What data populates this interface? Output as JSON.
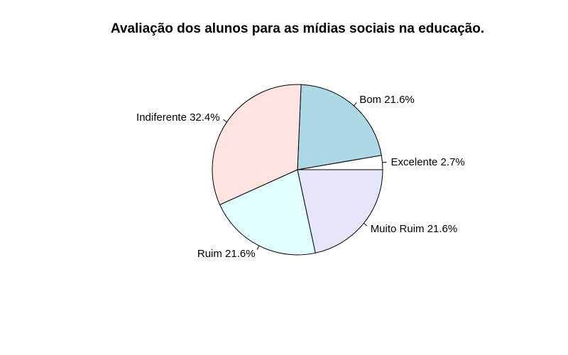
{
  "chart_data": {
    "type": "pie",
    "title": "Avaliação dos alunos para as mídias sociais na educação.",
    "slices": [
      {
        "label": "Excelente",
        "percent": 2.7,
        "display": "Excelente 2.7%",
        "color": "#ffffff"
      },
      {
        "label": "Bom",
        "percent": 21.6,
        "display": "Bom 21.6%",
        "color": "#add8e6"
      },
      {
        "label": "Indiferente",
        "percent": 32.4,
        "display": "Indiferente 32.4%",
        "color": "#ffe4e1"
      },
      {
        "label": "Ruim",
        "percent": 21.6,
        "display": "Ruim 21.6%",
        "color": "#e0ffff"
      },
      {
        "label": "Muito Ruim",
        "percent": 21.6,
        "display": "Muito Ruim 21.6%",
        "color": "#e6e6fa"
      }
    ],
    "direction": "counterclockwise",
    "start_angle_deg": 0
  }
}
